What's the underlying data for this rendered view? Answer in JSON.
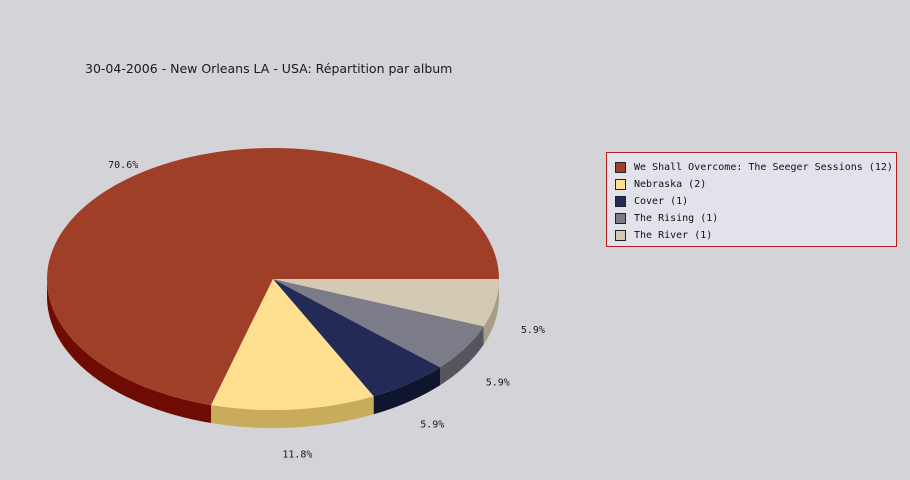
{
  "chart_data": {
    "type": "pie",
    "style": "3d",
    "title": "30-04-2006 - New Orleans LA - USA:  Répartition par album",
    "legend_position": "right",
    "slices": [
      {
        "name": "We Shall Overcome: The Seeger Sessions",
        "count": 12,
        "percent": 70.6,
        "label": "70.6%",
        "legend": "We Shall Overcome: The Seeger Sessions (12)",
        "color": "#a03f28",
        "side_color": "#6e0b02"
      },
      {
        "name": "Nebraska",
        "count": 2,
        "percent": 11.8,
        "label": "11.8%",
        "legend": "Nebraska (2)",
        "color": "#ffe090",
        "side_color": "#c9ab5c"
      },
      {
        "name": "Cover",
        "count": 1,
        "percent": 5.9,
        "label": "5.9%",
        "legend": "Cover (1)",
        "color": "#222a55",
        "side_color": "#10152e"
      },
      {
        "name": "The Rising",
        "count": 1,
        "percent": 5.9,
        "label": "5.9%",
        "legend": "The Rising (1)",
        "color": "#7c7c88",
        "side_color": "#55555f"
      },
      {
        "name": "The River",
        "count": 1,
        "percent": 5.9,
        "label": "5.9%",
        "legend": "The River (1)",
        "color": "#d4cab4",
        "side_color": "#a89e88"
      }
    ]
  },
  "colors": {
    "background": "#d4d3d8",
    "legend_border": "#b02020",
    "legend_background": "#e2e2ea"
  }
}
